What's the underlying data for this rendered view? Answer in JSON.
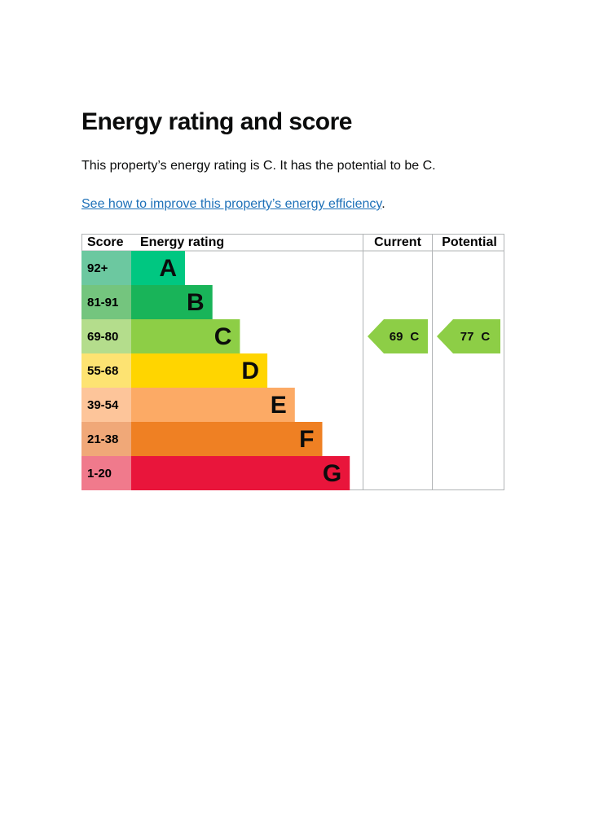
{
  "header": {
    "title": "Energy rating and score"
  },
  "intro": {
    "before": "This property’s energy rating is ",
    "rating": "C",
    "middle": ". It has the potential to be ",
    "potential": "C",
    "after": "."
  },
  "link": {
    "text": "See how to improve this property’s energy efficiency",
    "after": "."
  },
  "table": {
    "columns": [
      "Score",
      "Energy rating",
      "Current",
      "Potential"
    ],
    "bands": [
      {
        "score": "92+",
        "letter": "A",
        "score_color": "#6cc8a0",
        "color": "#00c781"
      },
      {
        "score": "81-91",
        "letter": "B",
        "score_color": "#74c57e",
        "color": "#19b459"
      },
      {
        "score": "69-80",
        "letter": "C",
        "score_color": "#b4dd8c",
        "color": "#8dce46"
      },
      {
        "score": "55-68",
        "letter": "D",
        "score_color": "#fde372",
        "color": "#ffd500"
      },
      {
        "score": "39-54",
        "letter": "E",
        "score_color": "#fdc59a",
        "color": "#fcaa65"
      },
      {
        "score": "21-38",
        "letter": "F",
        "score_color": "#f0a878",
        "color": "#ef8023"
      },
      {
        "score": "1-20",
        "letter": "G",
        "score_color": "#f07a8c",
        "color": "#e9153b"
      }
    ],
    "current": {
      "score": 69,
      "band": "C"
    },
    "potential": {
      "score": 77,
      "band": "C"
    }
  }
}
